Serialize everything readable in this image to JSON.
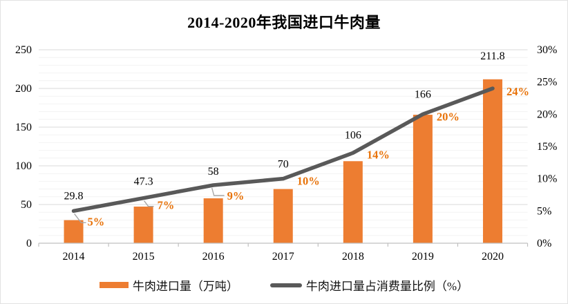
{
  "title": "2014-2020年我国进口牛肉量",
  "colors": {
    "bar": "#ED7D31",
    "line": "#595959",
    "pct_label": "#E8730A",
    "bar_label": "#000000",
    "axis": "#BFBFBF",
    "grid_major": "#D9D9D9",
    "grid_minor": "#F2F2F2",
    "leader": "#A6A6A6",
    "tick_text": "#000000"
  },
  "chart_data": {
    "type": "combo-bar-line",
    "title": "2014-2020年我国进口牛肉量",
    "categories": [
      "2014",
      "2015",
      "2016",
      "2017",
      "2018",
      "2019",
      "2020"
    ],
    "series": [
      {
        "name": "牛肉进口量（万吨）",
        "type": "bar",
        "axis": "left",
        "values": [
          29.8,
          47.3,
          58,
          70,
          106,
          166,
          211.8
        ],
        "labels": [
          "29.8",
          "47.3",
          "58",
          "70",
          "106",
          "166",
          "211.8"
        ]
      },
      {
        "name": "牛肉进口量占消费量比例（%）",
        "type": "line",
        "axis": "right",
        "values": [
          5,
          7,
          9,
          10,
          14,
          20,
          24
        ],
        "labels": [
          "5%",
          "7%",
          "9%",
          "10%",
          "14%",
          "20%",
          "24%"
        ]
      }
    ],
    "left_axis": {
      "min": 0,
      "max": 250,
      "major_step": 50,
      "minor_step": 10,
      "tick_labels": [
        "0",
        "50",
        "100",
        "150",
        "200",
        "250"
      ]
    },
    "right_axis": {
      "min": 0,
      "max": 30,
      "major_step": 5,
      "tick_labels": [
        "0%",
        "5%",
        "10%",
        "15%",
        "20%",
        "25%",
        "30%"
      ]
    },
    "grid": "horizontal major+minor",
    "legend_position": "bottom"
  }
}
